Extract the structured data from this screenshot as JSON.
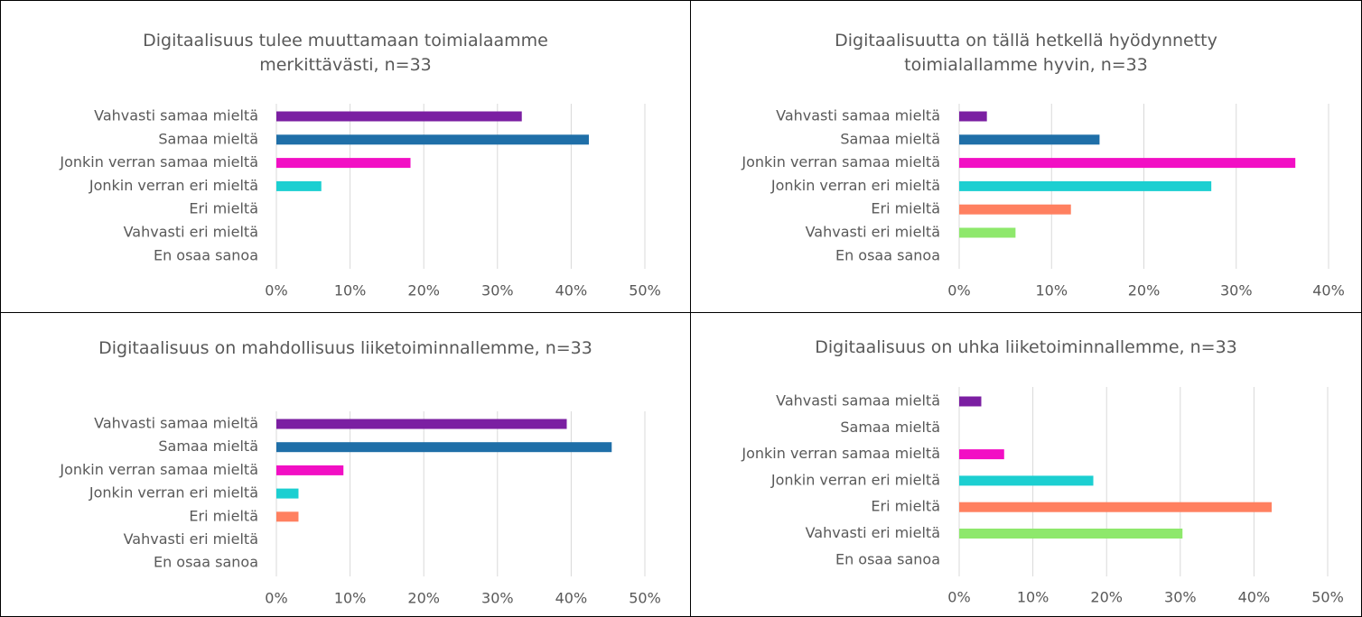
{
  "chart_data": [
    {
      "type": "bar",
      "orientation": "horizontal",
      "title": "Digitaalisuus tulee muuttamaan toimialaamme merkittävästi, n=33",
      "categories": [
        "Vahvasti samaa mieltä",
        "Samaa mieltä",
        "Jonkin verran samaa mieltä",
        "Jonkin verran eri mieltä",
        "Eri mieltä",
        "Vahvasti eri mieltä",
        "En osaa sanoa"
      ],
      "values": [
        33.3,
        42.4,
        18.2,
        6.1,
        0,
        0,
        0
      ],
      "colors": [
        "#7b1fa2",
        "#1f6fa8",
        "#f20fc4",
        "#1ccfd1",
        "#ff8060",
        "#8ee86c",
        "#a6a6a6"
      ],
      "xlim": [
        0,
        50
      ],
      "xticks": [
        {
          "value": 0,
          "label": "0%"
        },
        {
          "value": 10,
          "label": "10%"
        },
        {
          "value": 20,
          "label": "20%"
        },
        {
          "value": 30,
          "label": "30%"
        },
        {
          "value": 40,
          "label": "40%"
        },
        {
          "value": 50,
          "label": "50%"
        }
      ],
      "grid": true
    },
    {
      "type": "bar",
      "orientation": "horizontal",
      "title": "Digitaalisuutta on tällä hetkellä hyödynnetty toimialallamme hyvin, n=33",
      "categories": [
        "Vahvasti samaa mieltä",
        "Samaa mieltä",
        "Jonkin verran samaa mieltä",
        "Jonkin verran eri mieltä",
        "Eri mieltä",
        "Vahvasti eri mieltä",
        "En osaa sanoa"
      ],
      "values": [
        3.0,
        15.2,
        36.4,
        27.3,
        12.1,
        6.1,
        0
      ],
      "colors": [
        "#7b1fa2",
        "#1f6fa8",
        "#f20fc4",
        "#1ccfd1",
        "#ff8060",
        "#8ee86c",
        "#a6a6a6"
      ],
      "xlim": [
        0,
        40
      ],
      "xticks": [
        {
          "value": 0,
          "label": "0%"
        },
        {
          "value": 10,
          "label": "10%"
        },
        {
          "value": 20,
          "label": "20%"
        },
        {
          "value": 30,
          "label": "30%"
        },
        {
          "value": 40,
          "label": "40%"
        }
      ],
      "grid": true
    },
    {
      "type": "bar",
      "orientation": "horizontal",
      "title": "Digitaalisuus on mahdollisuus liiketoiminnallemme, n=33",
      "categories": [
        "Vahvasti samaa mieltä",
        "Samaa mieltä",
        "Jonkin verran samaa mieltä",
        "Jonkin verran eri mieltä",
        "Eri mieltä",
        "Vahvasti eri mieltä",
        "En osaa sanoa"
      ],
      "values": [
        39.4,
        45.5,
        9.1,
        3.0,
        3.0,
        0,
        0
      ],
      "colors": [
        "#7b1fa2",
        "#1f6fa8",
        "#f20fc4",
        "#1ccfd1",
        "#ff8060",
        "#8ee86c",
        "#a6a6a6"
      ],
      "xlim": [
        0,
        50
      ],
      "xticks": [
        {
          "value": 0,
          "label": "0%"
        },
        {
          "value": 10,
          "label": "10%"
        },
        {
          "value": 20,
          "label": "20%"
        },
        {
          "value": 30,
          "label": "30%"
        },
        {
          "value": 40,
          "label": "40%"
        },
        {
          "value": 50,
          "label": "50%"
        }
      ],
      "grid": true
    },
    {
      "type": "bar",
      "orientation": "horizontal",
      "title": "Digitaalisuus on uhka liiketoiminnallemme, n=33",
      "categories": [
        "Vahvasti samaa mieltä",
        "Samaa mieltä",
        "Jonkin verran samaa mieltä",
        "Jonkin verran eri mieltä",
        "Eri mieltä",
        "Vahvasti eri mieltä",
        "En osaa sanoa"
      ],
      "values": [
        3.0,
        0,
        6.1,
        18.2,
        42.4,
        30.3,
        0
      ],
      "colors": [
        "#7b1fa2",
        "#1f6fa8",
        "#f20fc4",
        "#1ccfd1",
        "#ff8060",
        "#8ee86c",
        "#a6a6a6"
      ],
      "xlim": [
        0,
        50
      ],
      "xticks": [
        {
          "value": 0,
          "label": "0%"
        },
        {
          "value": 10,
          "label": "10%"
        },
        {
          "value": 20,
          "label": "20%"
        },
        {
          "value": 30,
          "label": "30%"
        },
        {
          "value": 40,
          "label": "40%"
        },
        {
          "value": 50,
          "label": "50%"
        }
      ],
      "grid": true
    }
  ]
}
